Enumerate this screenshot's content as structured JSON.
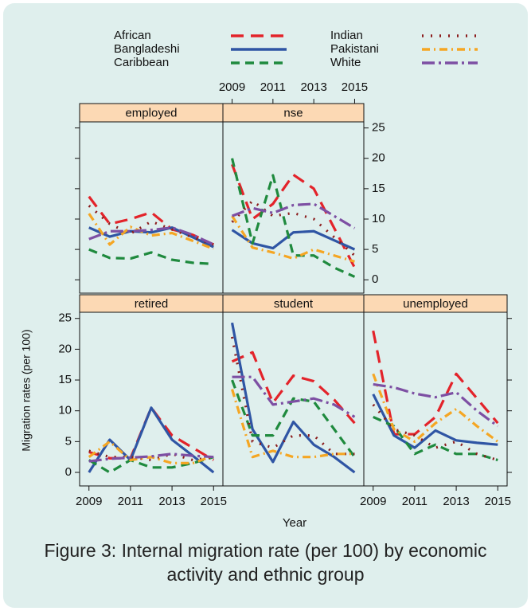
{
  "figure": {
    "xlabel": "Year",
    "ylabel": "Migration rates (per 100)",
    "caption": "Figure 3: Internal migration rate (per 100) by economic activity and ethnic group"
  },
  "chart_data": [
    {
      "type": "line",
      "title": "employed",
      "x": [
        2009,
        2010,
        2011,
        2012,
        2013,
        2014,
        2015
      ],
      "xlim": [
        2008.55,
        2015.45
      ],
      "ylim": [
        -2.2,
        26
      ],
      "xticks": [
        2009,
        2011,
        2013,
        2015
      ],
      "yticks": [
        0,
        5,
        10,
        15,
        20,
        25
      ],
      "series": [
        {
          "name": "African",
          "color": "#e3232a",
          "dash": "16 9",
          "values": [
            13.7,
            9.2,
            10,
            11.1,
            8.3,
            7.4,
            5.8
          ]
        },
        {
          "name": "Bangladeshi",
          "color": "#2f55a4",
          "dash": "none",
          "values": [
            8.6,
            7.1,
            8,
            7.8,
            8.6,
            7,
            5.4
          ]
        },
        {
          "name": "Caribbean",
          "color": "#1f8a3e",
          "dash": "11 7",
          "values": [
            5,
            3.6,
            3.5,
            4.5,
            3.3,
            2.8,
            2.6
          ]
        },
        {
          "name": "Indian",
          "color": "#8b1c1c",
          "dash": "2 9",
          "values": [
            12.2,
            9.2,
            7.6,
            9.6,
            8.3,
            7,
            5.8
          ]
        },
        {
          "name": "Pakistani",
          "color": "#f5a623",
          "dash": "10 5 2 5",
          "values": [
            10.9,
            5.8,
            8.7,
            7.3,
            7.7,
            6.4,
            5.1
          ]
        },
        {
          "name": "White",
          "color": "#7d4fa3",
          "dash": "16 5 3 5",
          "values": [
            6.7,
            8,
            8,
            8.2,
            8.6,
            7.4,
            5.8
          ]
        }
      ]
    },
    {
      "type": "line",
      "title": "nse",
      "x": [
        2009,
        2010,
        2011,
        2012,
        2013,
        2014,
        2015
      ],
      "xlim": [
        2008.55,
        2015.45
      ],
      "ylim": [
        -2.2,
        26
      ],
      "xticks": [
        2009,
        2011,
        2013,
        2015
      ],
      "yticks": [
        0,
        5,
        10,
        15,
        20,
        25
      ],
      "series": [
        {
          "name": "African",
          "color": "#e3232a",
          "dash": "16 9",
          "values": [
            19,
            10,
            12.5,
            17.3,
            15,
            8.5,
            2
          ]
        },
        {
          "name": "Bangladeshi",
          "color": "#2f55a4",
          "dash": "none",
          "values": [
            8.2,
            6,
            5.2,
            7.8,
            8,
            6.5,
            5
          ]
        },
        {
          "name": "Caribbean",
          "color": "#1f8a3e",
          "dash": "11 7",
          "values": [
            20,
            6,
            17.2,
            4,
            4,
            2,
            0.5
          ]
        },
        {
          "name": "Indian",
          "color": "#8b1c1c",
          "dash": "2 9",
          "values": [
            9.5,
            13,
            10.5,
            11,
            10,
            7,
            4
          ]
        },
        {
          "name": "Pakistani",
          "color": "#f5a623",
          "dash": "10 5 2 5",
          "values": [
            10.5,
            5.3,
            4.5,
            3.5,
            5,
            4,
            3
          ]
        },
        {
          "name": "White",
          "color": "#7d4fa3",
          "dash": "16 5 3 5",
          "values": [
            10.5,
            11.8,
            11,
            12.3,
            12.5,
            10.5,
            8.5
          ]
        }
      ]
    },
    {
      "type": "line",
      "title": "retired",
      "x": [
        2009,
        2010,
        2011,
        2012,
        2013,
        2014,
        2015
      ],
      "xlim": [
        2008.55,
        2015.45
      ],
      "ylim": [
        -2.2,
        26
      ],
      "xticks": [
        2009,
        2011,
        2013,
        2015
      ],
      "yticks": [
        0,
        5,
        10,
        15,
        20,
        25
      ],
      "series": [
        {
          "name": "African",
          "color": "#e3232a",
          "dash": "16 9",
          "values": [
            3.3,
            2.3,
            2.3,
            10.5,
            6,
            4,
            2
          ]
        },
        {
          "name": "Bangladeshi",
          "color": "#2f55a4",
          "dash": "none",
          "values": [
            0,
            5.3,
            2,
            10.5,
            5.3,
            2.7,
            0
          ]
        },
        {
          "name": "Caribbean",
          "color": "#1f8a3e",
          "dash": "11 7",
          "values": [
            2,
            0,
            2,
            0.8,
            0.8,
            1.5,
            2.5
          ]
        },
        {
          "name": "Indian",
          "color": "#8b1c1c",
          "dash": "2 9",
          "values": [
            3.5,
            2.5,
            2.5,
            2,
            3,
            2,
            2.5
          ]
        },
        {
          "name": "Pakistani",
          "color": "#f5a623",
          "dash": "10 5 2 5",
          "values": [
            2.5,
            5,
            2,
            2.5,
            1.5,
            1.5,
            2.7
          ]
        },
        {
          "name": "White",
          "color": "#7d4fa3",
          "dash": "16 5 3 5",
          "values": [
            1.8,
            2.2,
            2.4,
            2.6,
            3,
            2.7,
            2.5
          ]
        }
      ]
    },
    {
      "type": "line",
      "title": "student",
      "x": [
        2009,
        2010,
        2011,
        2012,
        2013,
        2014,
        2015
      ],
      "xlim": [
        2008.55,
        2015.45
      ],
      "ylim": [
        -2.2,
        26
      ],
      "xticks": [
        2009,
        2011,
        2013,
        2015
      ],
      "yticks": [
        0,
        5,
        10,
        15,
        20,
        25
      ],
      "series": [
        {
          "name": "African",
          "color": "#e3232a",
          "dash": "16 9",
          "values": [
            18,
            19.5,
            11.3,
            15.7,
            14.8,
            11.8,
            8
          ]
        },
        {
          "name": "Bangladeshi",
          "color": "#2f55a4",
          "dash": "none",
          "values": [
            24.3,
            7,
            1.7,
            8.2,
            4.5,
            2.5,
            0
          ]
        },
        {
          "name": "Caribbean",
          "color": "#1f8a3e",
          "dash": "11 7",
          "values": [
            15,
            6,
            6,
            12,
            11.5,
            7,
            2.5
          ]
        },
        {
          "name": "Indian",
          "color": "#8b1c1c",
          "dash": "2 9",
          "values": [
            22,
            5,
            4,
            6,
            6,
            3,
            3
          ]
        },
        {
          "name": "Pakistani",
          "color": "#f5a623",
          "dash": "10 5 2 5",
          "values": [
            13.5,
            2.5,
            3.5,
            2.5,
            2.5,
            3,
            3
          ]
        },
        {
          "name": "White",
          "color": "#7d4fa3",
          "dash": "16 5 3 5",
          "values": [
            15.5,
            15.5,
            11,
            11.5,
            12,
            11,
            9
          ]
        }
      ]
    },
    {
      "type": "line",
      "title": "unemployed",
      "x": [
        2009,
        2010,
        2011,
        2012,
        2013,
        2014,
        2015
      ],
      "xlim": [
        2008.55,
        2015.45
      ],
      "ylim": [
        -2.2,
        26
      ],
      "xticks": [
        2009,
        2011,
        2013,
        2015
      ],
      "yticks": [
        0,
        5,
        10,
        15,
        20,
        25
      ],
      "series": [
        {
          "name": "African",
          "color": "#e3232a",
          "dash": "16 9",
          "values": [
            23,
            6.2,
            6.2,
            9,
            16,
            12,
            8
          ]
        },
        {
          "name": "Bangladeshi",
          "color": "#2f55a4",
          "dash": "none",
          "values": [
            12.7,
            6,
            4,
            6.8,
            5.2,
            4.8,
            4.5
          ]
        },
        {
          "name": "Caribbean",
          "color": "#1f8a3e",
          "dash": "11 7",
          "values": [
            9,
            7.5,
            3,
            4.5,
            3,
            3,
            2
          ]
        },
        {
          "name": "Indian",
          "color": "#8b1c1c",
          "dash": "2 9",
          "values": [
            11,
            7,
            6,
            4,
            5,
            3,
            2
          ]
        },
        {
          "name": "Pakistani",
          "color": "#f5a623",
          "dash": "10 5 2 5",
          "values": [
            16,
            7,
            5,
            8,
            10.3,
            7.5,
            5
          ]
        },
        {
          "name": "White",
          "color": "#7d4fa3",
          "dash": "16 5 3 5",
          "values": [
            14.3,
            13.8,
            12.8,
            12.2,
            13,
            10,
            7.5
          ]
        }
      ]
    }
  ]
}
